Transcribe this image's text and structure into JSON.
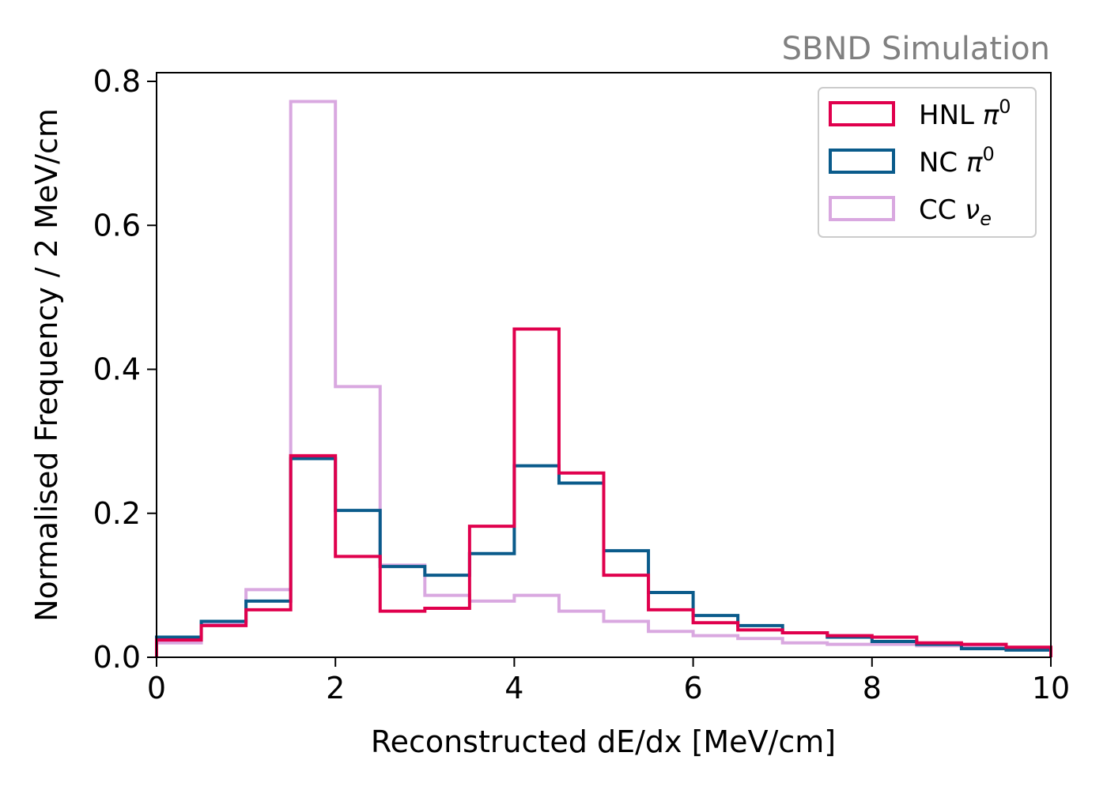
{
  "chart_data": {
    "type": "step-histogram",
    "annotation": "SBND Simulation",
    "xlabel": "Reconstructed dE/dx [MeV/cm]",
    "ylabel": "Normalised Frequency / 2 MeV/cm",
    "xlim": [
      0,
      10
    ],
    "ylim": [
      0,
      0.8
    ],
    "x_ticks": [
      "0",
      "2",
      "4",
      "6",
      "8",
      "10"
    ],
    "y_ticks": [
      "0.0",
      "0.2",
      "0.4",
      "0.6",
      "0.8"
    ],
    "legend_position": "top-right",
    "bin_edges": [
      0,
      0.5,
      1,
      1.5,
      2,
      2.5,
      3,
      3.5,
      4,
      4.5,
      5,
      5.5,
      6,
      6.5,
      7,
      7.5,
      8,
      8.5,
      9,
      9.5,
      10
    ],
    "series": [
      {
        "name": "HNL",
        "name_symbol": "π",
        "name_sup": "0",
        "color": "#e0004d",
        "values": [
          0.024,
          0.044,
          0.066,
          0.28,
          0.14,
          0.064,
          0.068,
          0.182,
          0.456,
          0.256,
          0.114,
          0.066,
          0.048,
          0.038,
          0.034,
          0.03,
          0.028,
          0.02,
          0.018,
          0.014
        ]
      },
      {
        "name": "NC",
        "name_symbol": "π",
        "name_sup": "0",
        "color": "#0a5b8b",
        "values": [
          0.028,
          0.05,
          0.078,
          0.276,
          0.204,
          0.126,
          0.114,
          0.144,
          0.266,
          0.242,
          0.148,
          0.09,
          0.058,
          0.044,
          0.034,
          0.028,
          0.022,
          0.018,
          0.012,
          0.01
        ]
      },
      {
        "name": "CC",
        "name_symbol": "ν",
        "name_sub": "e",
        "color": "#d9a8e0",
        "values": [
          0.02,
          0.048,
          0.094,
          0.772,
          0.376,
          0.128,
          0.086,
          0.078,
          0.086,
          0.064,
          0.05,
          0.036,
          0.03,
          0.026,
          0.02,
          0.018,
          0.018,
          0.016,
          0.014,
          0.012
        ]
      }
    ]
  }
}
